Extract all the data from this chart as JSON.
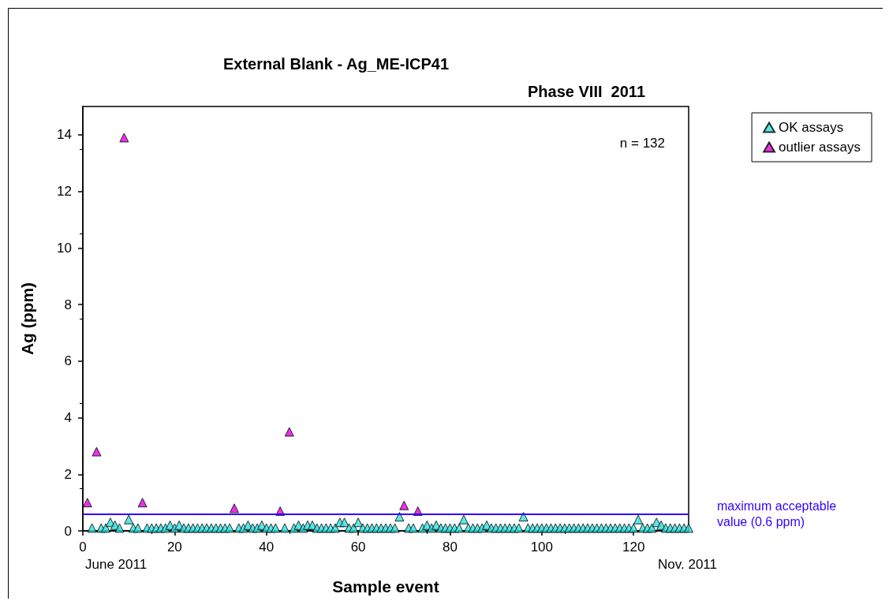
{
  "chart_data": {
    "type": "scatter",
    "title": "External Blank - Ag_ME-ICP41",
    "subtitle": "Phase VIII  2011",
    "xlabel": "Sample event",
    "ylabel": "Ag (ppm)",
    "xlim": [
      0,
      132
    ],
    "xticks": [
      0,
      20,
      40,
      60,
      80,
      100,
      120
    ],
    "ylim": [
      0,
      15
    ],
    "yticks": [
      0,
      2,
      4,
      6,
      8,
      10,
      12,
      14
    ],
    "grid": false,
    "legend": "top right",
    "marker": "triangle",
    "series": [
      {
        "name": "OK assays",
        "color": "#33e0e0",
        "x": [
          2,
          4,
          5,
          6,
          7,
          8,
          10,
          11,
          12,
          14,
          15,
          16,
          17,
          18,
          19,
          20,
          21,
          22,
          23,
          24,
          25,
          26,
          27,
          28,
          29,
          30,
          31,
          32,
          34,
          35,
          36,
          37,
          38,
          39,
          40,
          41,
          42,
          44,
          46,
          47,
          48,
          49,
          50,
          51,
          52,
          53,
          54,
          55,
          56,
          57,
          58,
          59,
          60,
          61,
          62,
          63,
          64,
          65,
          66,
          67,
          68,
          69,
          71,
          72,
          74,
          75,
          76,
          77,
          78,
          79,
          80,
          81,
          82,
          83,
          84,
          85,
          86,
          87,
          88,
          89,
          90,
          91,
          92,
          93,
          94,
          95,
          96,
          97,
          98,
          99,
          100,
          101,
          102,
          103,
          104,
          105,
          106,
          107,
          108,
          109,
          110,
          111,
          112,
          113,
          114,
          115,
          116,
          117,
          118,
          119,
          120,
          121,
          122,
          123,
          124,
          125,
          126,
          127,
          128,
          129,
          130,
          131,
          132
        ],
        "values": [
          0.1,
          0.1,
          0.1,
          0.3,
          0.2,
          0.1,
          0.4,
          0.1,
          0.1,
          0.1,
          0.1,
          0.1,
          0.1,
          0.1,
          0.2,
          0.1,
          0.2,
          0.1,
          0.1,
          0.1,
          0.1,
          0.1,
          0.1,
          0.1,
          0.1,
          0.1,
          0.1,
          0.1,
          0.1,
          0.1,
          0.2,
          0.1,
          0.1,
          0.2,
          0.1,
          0.1,
          0.1,
          0.1,
          0.1,
          0.2,
          0.1,
          0.2,
          0.2,
          0.1,
          0.1,
          0.1,
          0.1,
          0.1,
          0.3,
          0.3,
          0.1,
          0.1,
          0.3,
          0.1,
          0.1,
          0.1,
          0.1,
          0.1,
          0.1,
          0.1,
          0.1,
          0.5,
          0.1,
          0.1,
          0.1,
          0.2,
          0.1,
          0.2,
          0.1,
          0.1,
          0.1,
          0.1,
          0.1,
          0.4,
          0.1,
          0.1,
          0.1,
          0.1,
          0.2,
          0.1,
          0.1,
          0.1,
          0.1,
          0.1,
          0.1,
          0.1,
          0.5,
          0.1,
          0.1,
          0.1,
          0.1,
          0.1,
          0.1,
          0.1,
          0.1,
          0.1,
          0.1,
          0.1,
          0.1,
          0.1,
          0.1,
          0.1,
          0.1,
          0.1,
          0.1,
          0.1,
          0.1,
          0.1,
          0.1,
          0.1,
          0.1,
          0.4,
          0.1,
          0.1,
          0.1,
          0.3,
          0.2,
          0.1,
          0.1,
          0.1,
          0.1,
          0.1,
          0.1
        ]
      },
      {
        "name": "outlier assays",
        "color": "#e000e0",
        "x": [
          1,
          3,
          9,
          13,
          33,
          43,
          45,
          70,
          73
        ],
        "values": [
          1.0,
          2.8,
          13.9,
          1.0,
          0.8,
          0.7,
          3.5,
          0.9,
          0.7
        ]
      }
    ],
    "ref_lines": [
      {
        "axis": "y",
        "value": 0.6,
        "label": "maximum acceptable value (0.6 ppm)",
        "color": "#3300ff",
        "line_style": "solid"
      }
    ],
    "annotations": [
      "n = 132",
      "June 2011",
      "Nov. 2011"
    ]
  }
}
